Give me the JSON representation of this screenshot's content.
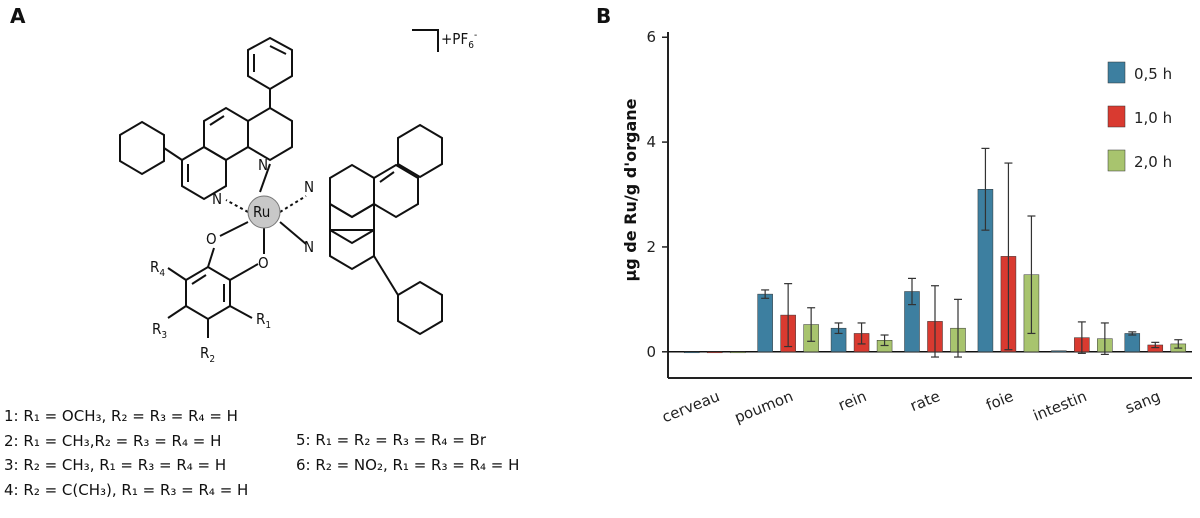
{
  "panel_a": {
    "label": "A",
    "counterion": "+PF",
    "counterion_sub": "6",
    "counterion_sup": "-",
    "metal": "Ru",
    "atom_n": "N",
    "atom_o": "O",
    "sub_r1": "R",
    "compounds_left": [
      {
        "num": "1:",
        "text": "R₁ = OCH₃, R₂ = R₃ = R₄ = H"
      },
      {
        "num": "2:",
        "text": "R₁ = CH₃,R₂ = R₃ = R₄ = H"
      },
      {
        "num": "3:",
        "text": "R₂ = CH₃, R₁ = R₃ = R₄ = H"
      },
      {
        "num": "4:",
        "text": "R₂ = C(CH₃), R₁ = R₃ = R₄ = H"
      }
    ],
    "compounds_right": [
      {
        "num": "5:",
        "text": "R₁ = R₂ = R₃ = R₄ = Br"
      },
      {
        "num": "6:",
        "text": "R₂ = NO₂, R₁ = R₃ = R₄ = H"
      }
    ]
  },
  "panel_b": {
    "label": "B"
  },
  "chart_data": {
    "type": "bar",
    "ylabel": "µg de Ru/g d'organe",
    "xlabel": "",
    "ylim": [
      -0.5,
      6
    ],
    "yticks": [
      0,
      2,
      4,
      6
    ],
    "categories": [
      "cerveau",
      "poumon",
      "rein",
      "rate",
      "foie",
      "intestin",
      "sang"
    ],
    "series": [
      {
        "name": "0,5 h",
        "color": "#3d7fa0",
        "values": [
          0.0,
          1.1,
          0.45,
          1.15,
          3.1,
          0.02,
          0.35
        ],
        "errors": [
          0.0,
          0.08,
          0.1,
          0.25,
          0.78,
          0.0,
          0.03
        ]
      },
      {
        "name": "1,0 h",
        "color": "#d93a30",
        "values": [
          0.0,
          0.7,
          0.35,
          0.58,
          1.82,
          0.27,
          0.13
        ],
        "errors": [
          0.0,
          0.6,
          0.2,
          0.68,
          1.78,
          0.3,
          0.05
        ]
      },
      {
        "name": "2,0 h",
        "color": "#a8c46e",
        "values": [
          0.0,
          0.52,
          0.22,
          0.45,
          1.47,
          0.25,
          0.15
        ],
        "errors": [
          0.0,
          0.32,
          0.1,
          0.55,
          1.12,
          0.3,
          0.08
        ]
      }
    ],
    "legend_position": "top-right",
    "grid": false
  }
}
